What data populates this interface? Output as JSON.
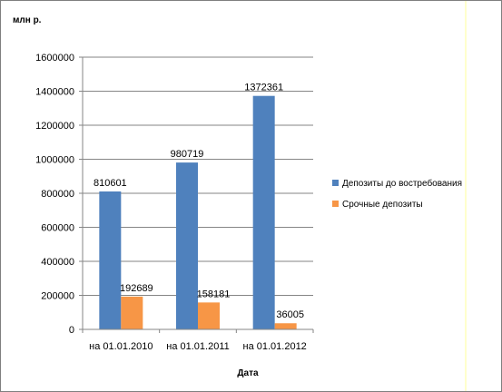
{
  "chart_data": {
    "type": "bar",
    "ylabel": "млн р.",
    "xlabel": "Дата",
    "categories": [
      "на 01.01.2010",
      "на 01.01.2011",
      "на 01.01.2012"
    ],
    "series": [
      {
        "name": "Депозиты до востребования",
        "color": "#4F81BD",
        "values": [
          810601,
          980719,
          1372361
        ]
      },
      {
        "name": "Срочные депозиты",
        "color": "#F79646",
        "values": [
          192689,
          158181,
          36005
        ]
      }
    ],
    "ylim": [
      0,
      1600000
    ],
    "yticks": [
      "0",
      "200000",
      "400000",
      "600000",
      "800000",
      "1000000",
      "1200000",
      "1400000",
      "1600000"
    ],
    "grid": true,
    "legend": "right"
  }
}
